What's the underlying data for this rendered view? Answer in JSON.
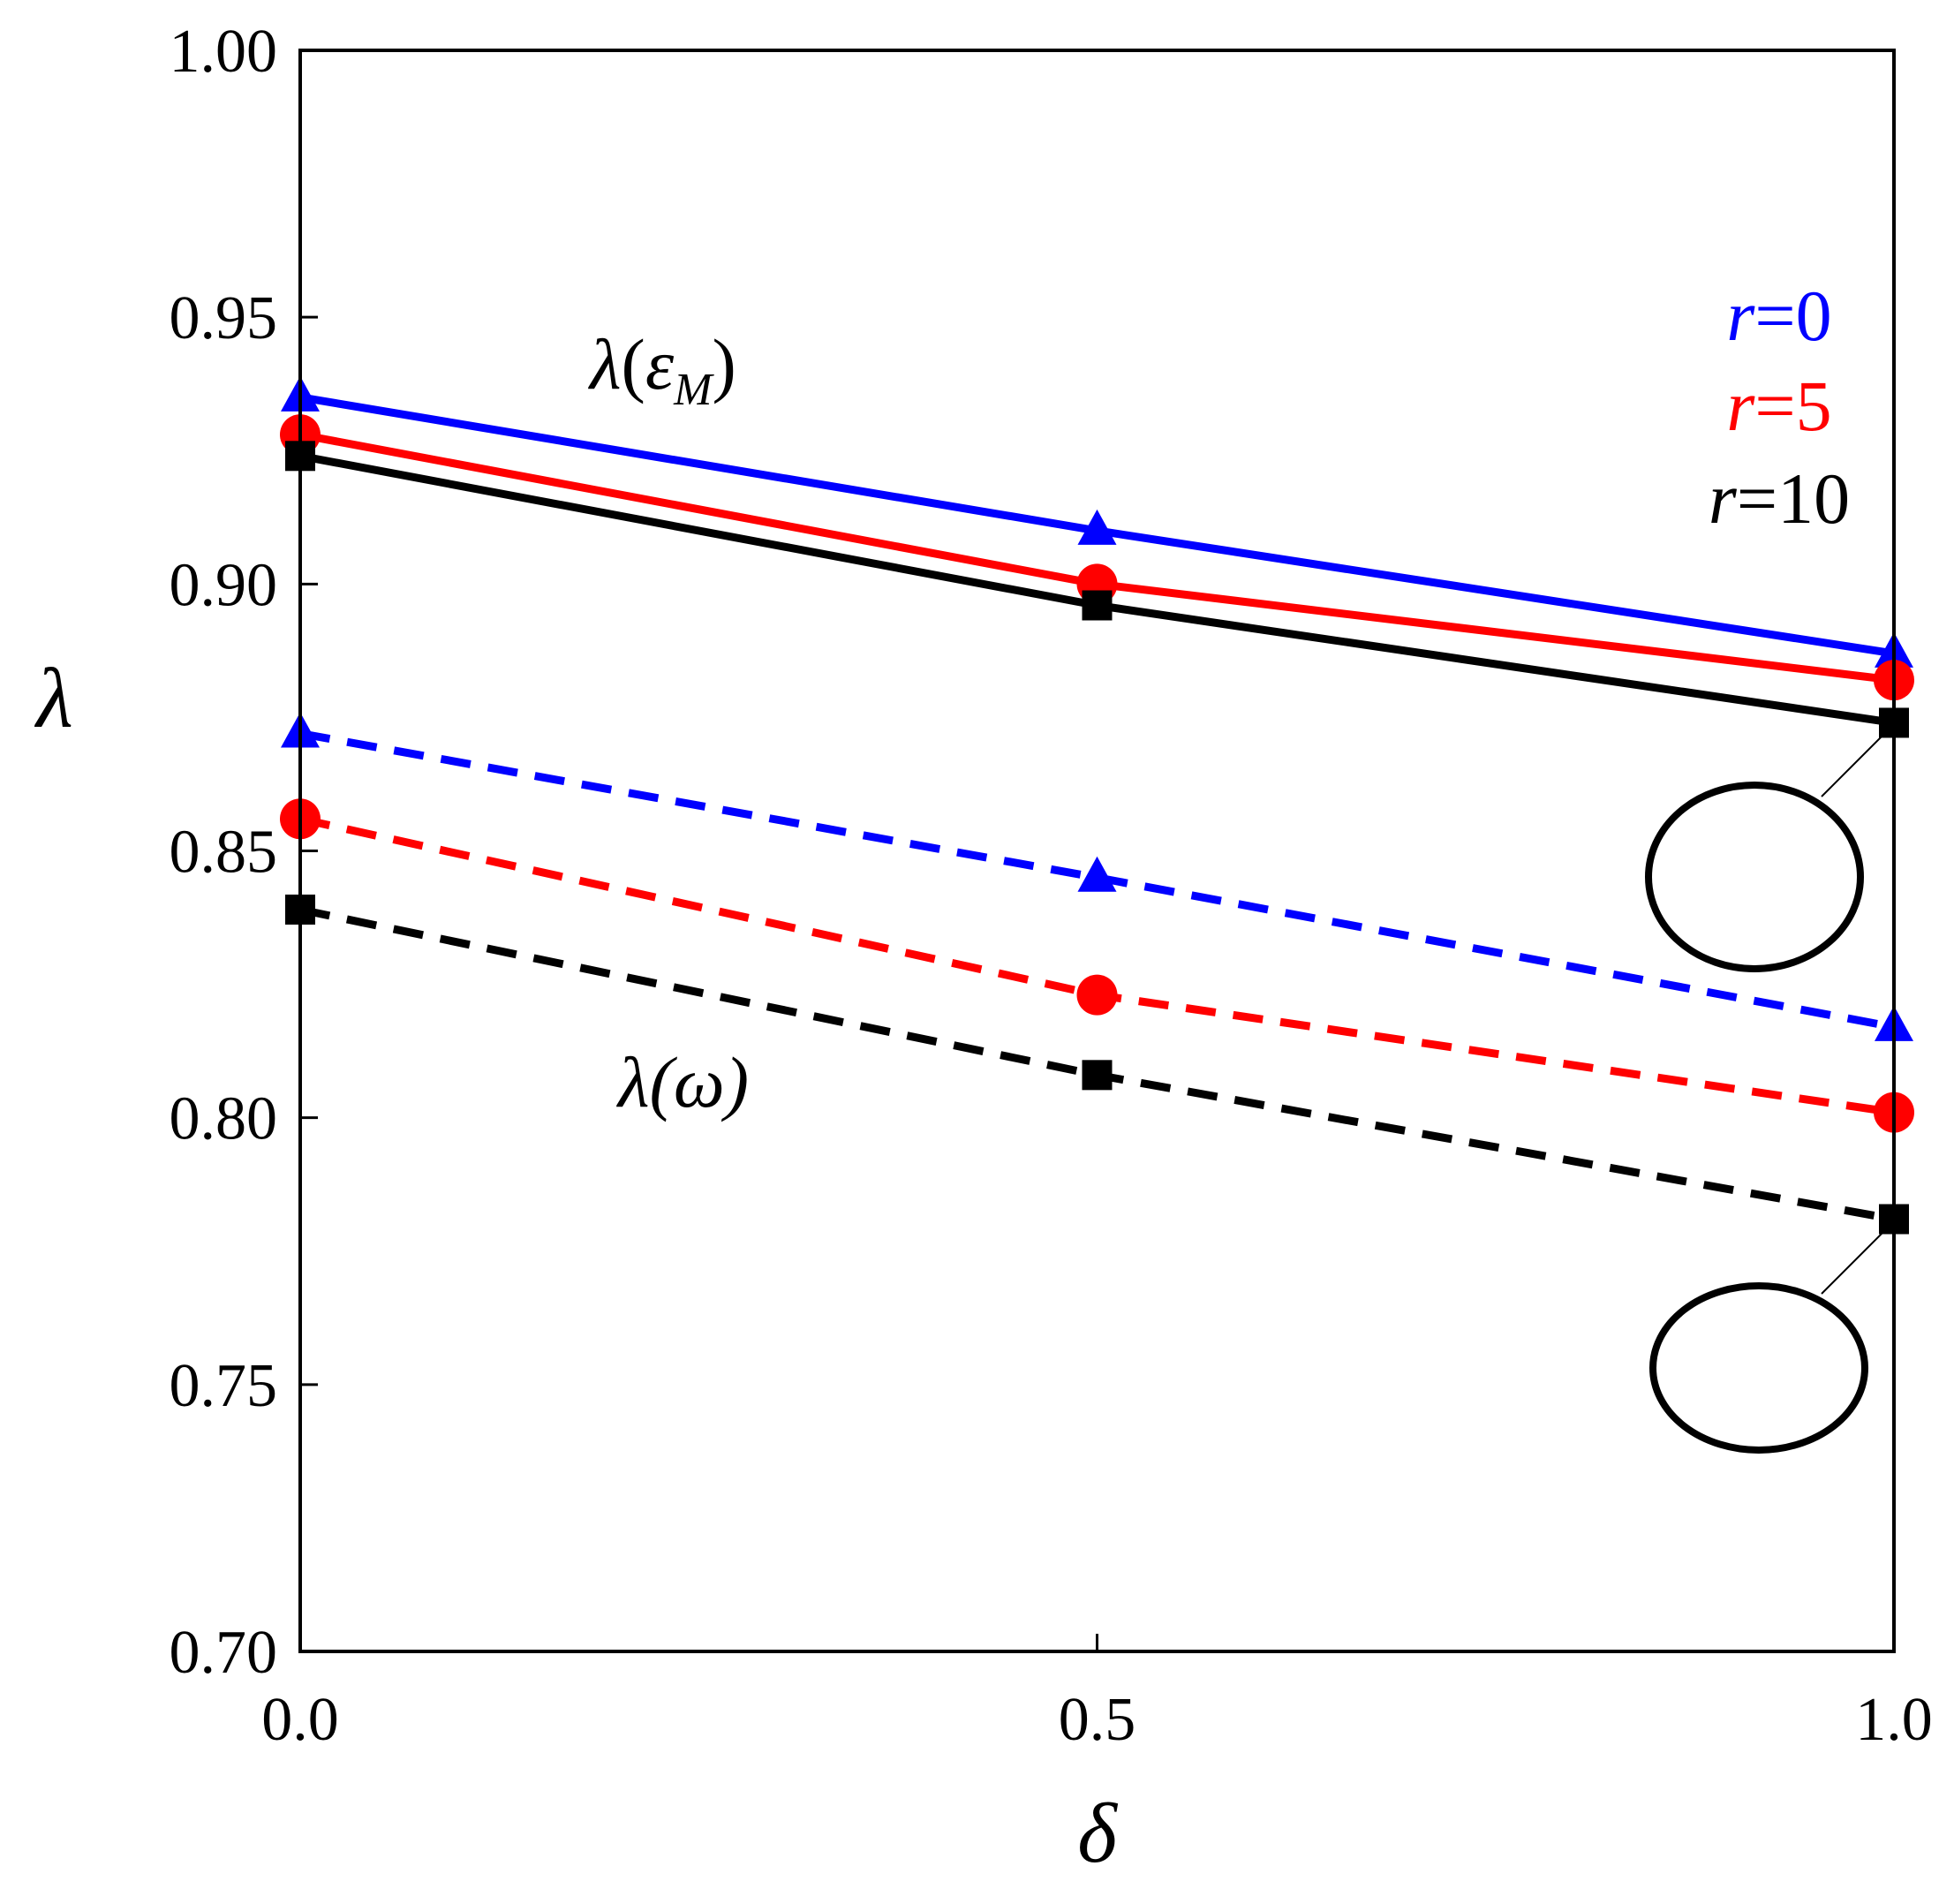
{
  "chart_data": {
    "type": "line",
    "title": "",
    "xlabel": "δ",
    "ylabel": "λ",
    "xlim": [
      0.0,
      1.0
    ],
    "ylim": [
      0.7,
      1.0
    ],
    "x": [
      0.0,
      0.5,
      1.0
    ],
    "xticks": [
      "0.0",
      "0.5",
      "1.0"
    ],
    "yticks": [
      "0.70",
      "0.75",
      "0.80",
      "0.85",
      "0.90",
      "0.95",
      "1.00"
    ],
    "grid": false,
    "series": [
      {
        "name": "λ(εM), r=0",
        "group": "eps",
        "r": "0",
        "color": "#0000ff",
        "marker": "triangle",
        "style": "solid",
        "values": [
          0.935,
          0.91,
          0.887
        ]
      },
      {
        "name": "λ(εM), r=5",
        "group": "eps",
        "r": "5",
        "color": "#ff0000",
        "marker": "circle",
        "style": "solid",
        "values": [
          0.928,
          0.9,
          0.882
        ]
      },
      {
        "name": "λ(εM), r=10",
        "group": "eps",
        "r": "10",
        "color": "#000000",
        "marker": "square",
        "style": "solid",
        "values": [
          0.924,
          0.896,
          0.874
        ]
      },
      {
        "name": "λ(ω), r=0",
        "group": "omega",
        "r": "0",
        "color": "#0000ff",
        "marker": "triangle",
        "style": "dashed",
        "values": [
          0.872,
          0.845,
          0.817
        ]
      },
      {
        "name": "λ(ω), r=5",
        "group": "omega",
        "r": "5",
        "color": "#ff0000",
        "marker": "circle",
        "style": "dashed",
        "values": [
          0.856,
          0.823,
          0.801
        ]
      },
      {
        "name": "λ(ω), r=10",
        "group": "omega",
        "r": "10",
        "color": "#000000",
        "marker": "square",
        "style": "dashed",
        "values": [
          0.839,
          0.808,
          0.781
        ]
      }
    ],
    "annotations": {
      "eps_label": {
        "lambda": "λ",
        "open": "(",
        "epsilon": "ε",
        "subscript": "M",
        "close": ")"
      },
      "omega_label": "λ(ω)"
    },
    "legend": {
      "placement": "top-right",
      "entries": [
        {
          "var": "r",
          "eq": "=",
          "val": "0",
          "color": "#0000ff"
        },
        {
          "var": "r",
          "eq": "=",
          "val": "5",
          "color": "#ff0000"
        },
        {
          "var": "r",
          "eq": "=",
          "val": "10",
          "color": "#000000"
        }
      ]
    }
  }
}
